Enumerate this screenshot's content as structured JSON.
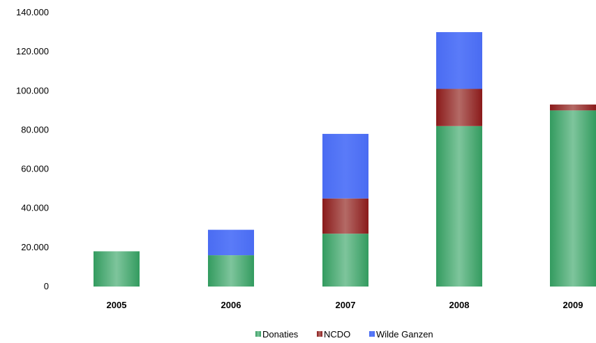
{
  "chart_data": {
    "type": "bar",
    "stacked": true,
    "categories": [
      "2005",
      "2006",
      "2007",
      "2008",
      "2009"
    ],
    "series": [
      {
        "name": "Donaties",
        "color": "#3a9a64",
        "values": [
          18000,
          16000,
          27000,
          82000,
          90000
        ]
      },
      {
        "name": "NCDO",
        "color": "#8e1f1f",
        "values": [
          0,
          0,
          18000,
          19000,
          3000
        ]
      },
      {
        "name": "Wilde Ganzen",
        "color": "#4d6ff0",
        "values": [
          0,
          13000,
          33000,
          29000,
          0
        ]
      }
    ],
    "ylim": [
      0,
      140000
    ],
    "yticks": [
      0,
      20000,
      40000,
      60000,
      80000,
      100000,
      120000,
      140000
    ],
    "ytick_labels": [
      "0",
      "20.000",
      "40.000",
      "60.000",
      "80.000",
      "100.000",
      "120.000",
      "140.000"
    ],
    "grid": false,
    "legend_position": "bottom"
  }
}
